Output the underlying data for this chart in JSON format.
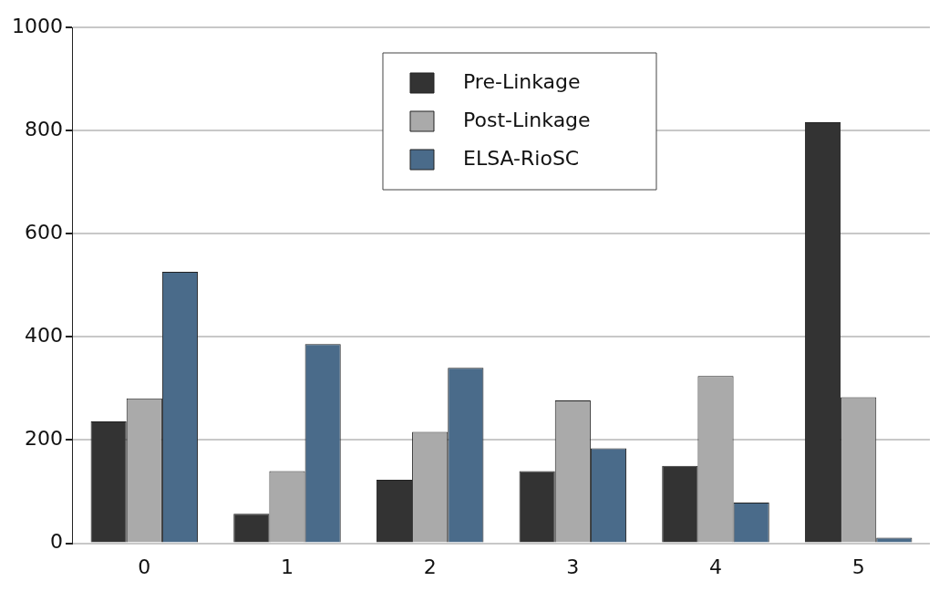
{
  "chart_data": {
    "type": "bar",
    "categories": [
      "0",
      "1",
      "2",
      "3",
      "4",
      "5"
    ],
    "series": [
      {
        "name": "Pre-Linkage",
        "color": "#333333",
        "values": [
          236,
          57,
          123,
          140,
          150,
          816
        ]
      },
      {
        "name": "Post-Linkage",
        "color": "#aaaaaa",
        "values": [
          281,
          140,
          216,
          277,
          324,
          283
        ]
      },
      {
        "name": "ELSA-RioSC",
        "color": "#4a6b8a",
        "values": [
          526,
          386,
          340,
          184,
          79,
          11
        ]
      }
    ],
    "ylim": [
      0,
      1000
    ],
    "yticks": [
      0,
      200,
      400,
      600,
      800,
      1000
    ],
    "grid": "y",
    "legend": "top"
  }
}
